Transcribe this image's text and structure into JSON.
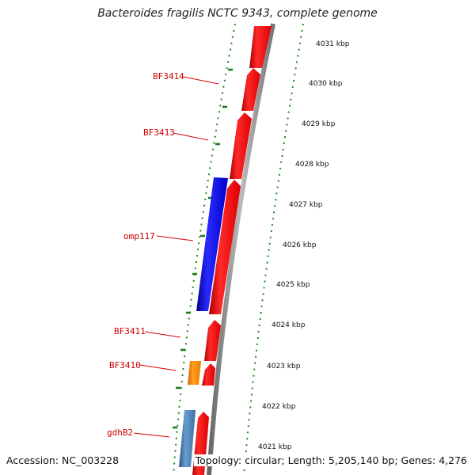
{
  "title": "Bacteroides fragilis NCTC 9343, complete genome",
  "accession": "Accession: NC_003228",
  "summary": "Topology: circular; Length: 5,205,140 bp; Genes: 4,276",
  "colors": {
    "gene_default": "#ee1111",
    "gene_omp": "#1a1aee",
    "gene_orange": "#ff8800",
    "gene_steelblue": "#4682b4",
    "label_red": "#cc0000",
    "tick_green": "#1a8a1a"
  },
  "scale_labels": [
    "4031 kbp",
    "4030 kbp",
    "4029 kbp",
    "4028 kbp",
    "4027 kbp",
    "4026 kbp",
    "4025 kbp",
    "4024 kbp",
    "4023 kbp",
    "4022 kbp",
    "4021 kbp"
  ],
  "gene_labels": [
    "BF3414",
    "BF3413",
    "omp117",
    "BF3411",
    "BF3410",
    "gdhB2"
  ]
}
